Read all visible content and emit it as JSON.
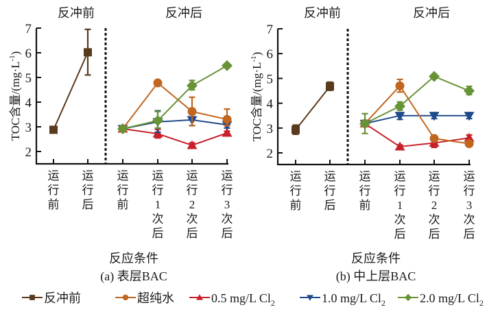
{
  "chart_data": [
    {
      "type": "line",
      "subtitle": "(a) 表层BAC",
      "xlabel": "反应条件",
      "ylabel": "TOC含量/(mg·L⁻¹)",
      "ylim": [
        2,
        7
      ],
      "yticks": [
        2,
        3,
        4,
        5,
        6,
        7
      ],
      "phase_labels": [
        "反冲前",
        "反冲后"
      ],
      "categories": [
        "运行前",
        "运行后",
        "运行前",
        "运行1次后",
        "运行2次后",
        "运行3次后"
      ],
      "category_lines": [
        [
          "运",
          "行",
          "前"
        ],
        [
          "运",
          "行",
          "后"
        ],
        [
          "运",
          "行",
          "前"
        ],
        [
          "运",
          "行",
          "1",
          "次",
          "后"
        ],
        [
          "运",
          "行",
          "2",
          "次",
          "后"
        ],
        [
          "运",
          "行",
          "3",
          "次",
          "后"
        ]
      ],
      "series": [
        {
          "name": "反冲前",
          "key": "before",
          "x_index": [
            0,
            1
          ],
          "values": [
            2.88,
            6.02
          ],
          "err_low": [
            2.8,
            5.1
          ],
          "err_high": [
            2.96,
            6.95
          ]
        },
        {
          "name": "超纯水",
          "key": "water",
          "x_index": [
            2,
            3,
            4,
            5
          ],
          "values": [
            2.92,
            4.78,
            3.62,
            3.3
          ],
          "err_low": [
            2.86,
            4.72,
            3.05,
            3.05
          ],
          "err_high": [
            2.98,
            4.84,
            4.2,
            3.72
          ]
        },
        {
          "name": "0.5 mg/L Cl2",
          "key": "cl05",
          "x_index": [
            2,
            3,
            4,
            5
          ],
          "values": [
            2.92,
            2.72,
            2.25,
            2.75
          ],
          "err_low": [
            2.86,
            2.55,
            2.15,
            2.68
          ],
          "err_high": [
            2.98,
            2.9,
            2.35,
            2.82
          ]
        },
        {
          "name": "1.0 mg/L Cl2",
          "key": "cl10",
          "x_index": [
            2,
            3,
            4,
            5
          ],
          "values": [
            2.92,
            3.2,
            3.28,
            3.08
          ],
          "err_low": [
            2.86,
            2.78,
            3.05,
            2.95
          ],
          "err_high": [
            2.98,
            3.65,
            3.5,
            3.2
          ]
        },
        {
          "name": "2.0 mg/L Cl2",
          "key": "cl20",
          "x_index": [
            2,
            3,
            4,
            5
          ],
          "values": [
            2.92,
            3.25,
            4.67,
            5.48
          ],
          "err_low": [
            2.86,
            2.95,
            4.5,
            5.42
          ],
          "err_high": [
            2.98,
            3.62,
            4.88,
            5.55
          ]
        }
      ]
    },
    {
      "type": "line",
      "subtitle": "(b) 中上层BAC",
      "xlabel": "反应条件",
      "ylabel": "TOC含量/(mg·L⁻¹)",
      "ylim": [
        2,
        7
      ],
      "yticks": [
        2,
        3,
        4,
        5,
        6,
        7
      ],
      "phase_labels": [
        "反冲前",
        "反冲后"
      ],
      "categories": [
        "运行前",
        "运行后",
        "运行前",
        "运行1次后",
        "运行2次后",
        "运行3次后"
      ],
      "category_lines": [
        [
          "运",
          "行",
          "前"
        ],
        [
          "运",
          "行",
          "后"
        ],
        [
          "运",
          "行",
          "前"
        ],
        [
          "运",
          "行",
          "1",
          "次",
          "后"
        ],
        [
          "运",
          "行",
          "2",
          "次",
          "后"
        ],
        [
          "运",
          "行",
          "3",
          "次",
          "后"
        ]
      ],
      "series": [
        {
          "name": "反冲前",
          "key": "before",
          "x_index": [
            0,
            1
          ],
          "values": [
            2.93,
            4.68
          ],
          "err_low": [
            2.75,
            4.52
          ],
          "err_high": [
            3.12,
            4.85
          ]
        },
        {
          "name": "超纯水",
          "key": "water",
          "x_index": [
            2,
            3,
            4,
            5
          ],
          "values": [
            3.18,
            4.7,
            2.58,
            2.37
          ],
          "err_low": [
            3.1,
            4.45,
            2.5,
            2.3
          ],
          "err_high": [
            3.26,
            4.96,
            2.66,
            2.44
          ]
        },
        {
          "name": "0.5 mg/L Cl2",
          "key": "cl05",
          "x_index": [
            2,
            3,
            4,
            5
          ],
          "values": [
            3.18,
            2.25,
            2.4,
            2.6
          ],
          "err_low": [
            3.1,
            2.18,
            2.22,
            2.5
          ],
          "err_high": [
            3.26,
            2.32,
            2.55,
            2.72
          ]
        },
        {
          "name": "1.0 mg/L Cl2",
          "key": "cl10",
          "x_index": [
            2,
            3,
            4,
            5
          ],
          "values": [
            3.18,
            3.5,
            3.5,
            3.5
          ],
          "err_low": [
            3.1,
            3.35,
            3.38,
            3.38
          ],
          "err_high": [
            3.26,
            3.62,
            3.62,
            3.62
          ]
        },
        {
          "name": "2.0 mg/L Cl2",
          "key": "cl20",
          "x_index": [
            2,
            3,
            4,
            5
          ],
          "values": [
            3.18,
            3.88,
            5.08,
            4.5
          ],
          "err_low": [
            2.78,
            3.72,
            5.0,
            4.35
          ],
          "err_high": [
            3.58,
            4.05,
            5.16,
            4.68
          ]
        }
      ]
    }
  ],
  "legend": {
    "items": [
      {
        "key": "before",
        "label": "反冲前",
        "sub": ""
      },
      {
        "key": "water",
        "label": "超纯水",
        "sub": ""
      },
      {
        "key": "cl05",
        "label": "0.5 mg/L Cl",
        "sub": "2"
      },
      {
        "key": "cl10",
        "label": "1.0 mg/L Cl",
        "sub": "2"
      },
      {
        "key": "cl20",
        "label": "2.0 mg/L Cl",
        "sub": "2"
      }
    ],
    "placement": "bottom"
  },
  "styles": {
    "before": {
      "color": "#5a3a1c",
      "marker": "square"
    },
    "water": {
      "color": "#c0661f",
      "marker": "circle"
    },
    "cl05": {
      "color": "#c8202a",
      "marker": "triangle-up"
    },
    "cl10": {
      "color": "#1f4a8a",
      "marker": "triangle-down"
    },
    "cl20": {
      "color": "#679236",
      "marker": "diamond"
    }
  }
}
